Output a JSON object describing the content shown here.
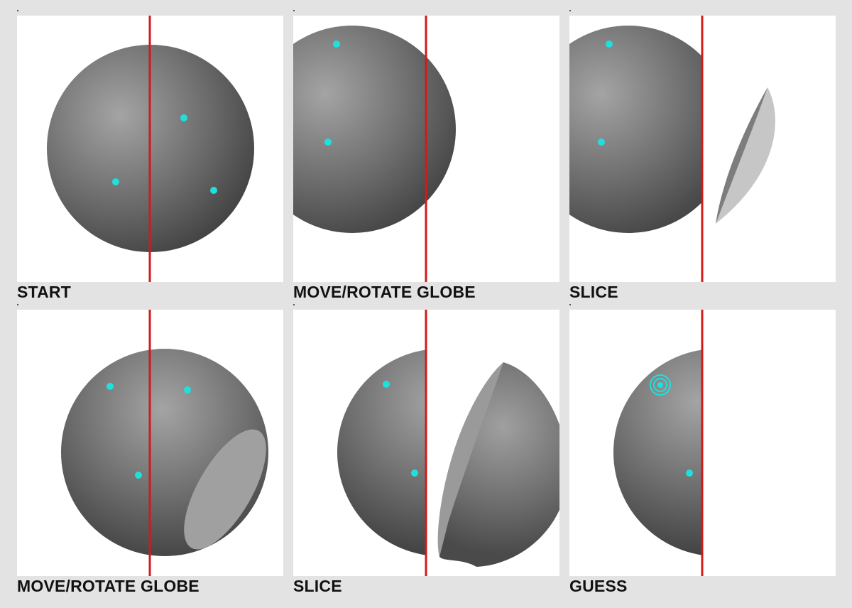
{
  "panels": [
    {
      "caption": "START"
    },
    {
      "caption": "MOVE/ROTATE GLOBE"
    },
    {
      "caption": "SLICE"
    },
    {
      "caption": "MOVE/ROTATE GLOBE"
    },
    {
      "caption": "SLICE"
    },
    {
      "caption": "GUESS"
    }
  ],
  "colors": {
    "cut_line": "#d11a1a",
    "marker": "#1fe0dc",
    "sphere_light": "#a4a4a4",
    "sphere_dark": "#444444",
    "slice_face": "#a3a3a3"
  }
}
